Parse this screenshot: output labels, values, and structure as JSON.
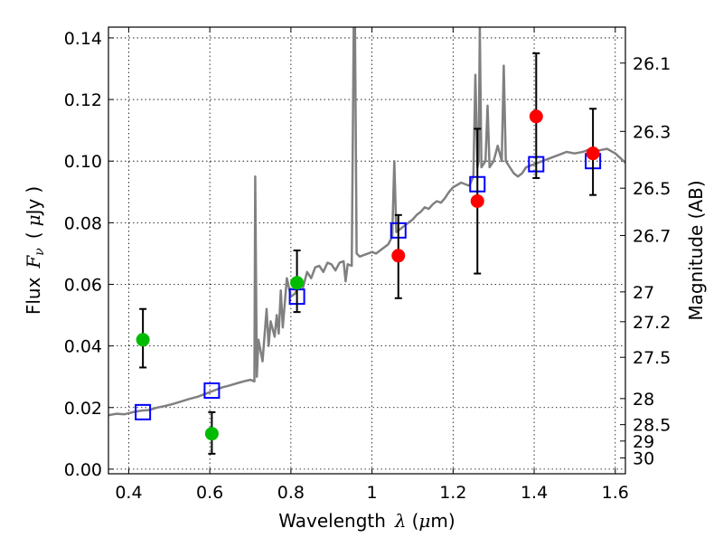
{
  "chart_data": {
    "type": "scatter",
    "xlabel_parts": [
      "Wavelength",
      "λ",
      "(",
      "μ",
      "m)"
    ],
    "ylabel_parts": [
      "Flux",
      "F",
      "ν",
      "(",
      "μ",
      "Jy",
      ")"
    ],
    "y2label": "Magnitude (AB)",
    "xlim": [
      0.35,
      1.625
    ],
    "ylim": [
      -0.0015,
      0.1435
    ],
    "grid": true,
    "x_ticks": [
      0.4,
      0.6,
      0.8,
      1.0,
      1.2,
      1.4,
      1.6
    ],
    "x_tick_labels": [
      "0.4",
      "0.6",
      "0.8",
      "1",
      "1.2",
      "1.4",
      "1.6"
    ],
    "y_ticks": [
      0.0,
      0.02,
      0.04,
      0.06,
      0.08,
      0.1,
      0.12,
      0.14
    ],
    "y_tick_labels": [
      "0.00",
      "0.02",
      "0.04",
      "0.06",
      "0.08",
      "0.10",
      "0.12",
      "0.14"
    ],
    "y2_ticks": [
      {
        "label": "26.1",
        "mag": 26.1
      },
      {
        "label": "26.3",
        "mag": 26.3
      },
      {
        "label": "26.5",
        "mag": 26.5
      },
      {
        "label": "26.7",
        "mag": 26.7
      },
      {
        "label": "27",
        "mag": 27.0
      },
      {
        "label": "27.2",
        "mag": 27.2
      },
      {
        "label": "27.5",
        "mag": 27.5
      },
      {
        "label": "28",
        "mag": 28.0
      },
      {
        "label": "28.5",
        "mag": 28.5
      },
      {
        "label": "29",
        "mag": 29.0
      },
      {
        "label": "30",
        "mag": 30.0
      }
    ],
    "series": [
      {
        "kind": "line",
        "color": "#808080",
        "points": [
          [
            0.35,
            0.0175
          ],
          [
            0.37,
            0.018
          ],
          [
            0.39,
            0.0178
          ],
          [
            0.41,
            0.0185
          ],
          [
            0.43,
            0.019
          ],
          [
            0.45,
            0.0192
          ],
          [
            0.47,
            0.02
          ],
          [
            0.49,
            0.0205
          ],
          [
            0.51,
            0.0212
          ],
          [
            0.53,
            0.022
          ],
          [
            0.55,
            0.0228
          ],
          [
            0.57,
            0.0235
          ],
          [
            0.59,
            0.0245
          ],
          [
            0.61,
            0.0255
          ],
          [
            0.63,
            0.0265
          ],
          [
            0.65,
            0.0272
          ],
          [
            0.67,
            0.028
          ],
          [
            0.69,
            0.0287
          ],
          [
            0.7,
            0.029
          ],
          [
            0.71,
            0.0285
          ],
          [
            0.712,
            0.095
          ],
          [
            0.716,
            0.03
          ],
          [
            0.72,
            0.042
          ],
          [
            0.73,
            0.035
          ],
          [
            0.74,
            0.052
          ],
          [
            0.745,
            0.04
          ],
          [
            0.75,
            0.048
          ],
          [
            0.76,
            0.043
          ],
          [
            0.765,
            0.05
          ],
          [
            0.77,
            0.044
          ],
          [
            0.775,
            0.058
          ],
          [
            0.78,
            0.046
          ],
          [
            0.79,
            0.062
          ],
          [
            0.8,
            0.056
          ],
          [
            0.81,
            0.057
          ],
          [
            0.82,
            0.06
          ],
          [
            0.83,
            0.059
          ],
          [
            0.84,
            0.064
          ],
          [
            0.85,
            0.062
          ],
          [
            0.86,
            0.0655
          ],
          [
            0.87,
            0.066
          ],
          [
            0.88,
            0.064
          ],
          [
            0.89,
            0.067
          ],
          [
            0.9,
            0.0665
          ],
          [
            0.91,
            0.0645
          ],
          [
            0.92,
            0.067
          ],
          [
            0.93,
            0.0675
          ],
          [
            0.935,
            0.061
          ],
          [
            0.94,
            0.0665
          ],
          [
            0.95,
            0.066
          ],
          [
            0.955,
            0.1435
          ],
          [
            0.958,
            0.1435
          ],
          [
            0.962,
            0.07
          ],
          [
            0.97,
            0.069
          ],
          [
            0.98,
            0.0695
          ],
          [
            0.99,
            0.07
          ],
          [
            1.0,
            0.0705
          ],
          [
            1.01,
            0.07
          ],
          [
            1.02,
            0.071
          ],
          [
            1.03,
            0.072
          ],
          [
            1.04,
            0.073
          ],
          [
            1.05,
            0.0755
          ],
          [
            1.055,
            0.1
          ],
          [
            1.06,
            0.077
          ],
          [
            1.07,
            0.078
          ],
          [
            1.08,
            0.079
          ],
          [
            1.09,
            0.08
          ],
          [
            1.1,
            0.081
          ],
          [
            1.11,
            0.0825
          ],
          [
            1.12,
            0.0835
          ],
          [
            1.13,
            0.085
          ],
          [
            1.14,
            0.0845
          ],
          [
            1.15,
            0.086
          ],
          [
            1.16,
            0.087
          ],
          [
            1.17,
            0.0865
          ],
          [
            1.18,
            0.088
          ],
          [
            1.19,
            0.09
          ],
          [
            1.2,
            0.0915
          ],
          [
            1.22,
            0.093
          ],
          [
            1.24,
            0.092
          ],
          [
            1.25,
            0.095
          ],
          [
            1.255,
            0.128
          ],
          [
            1.26,
            0.098
          ],
          [
            1.263,
            0.1
          ],
          [
            1.266,
            0.1435
          ],
          [
            1.27,
            0.098
          ],
          [
            1.28,
            0.1
          ],
          [
            1.285,
            0.118
          ],
          [
            1.29,
            0.098
          ],
          [
            1.3,
            0.1
          ],
          [
            1.31,
            0.105
          ],
          [
            1.32,
            0.1
          ],
          [
            1.325,
            0.131
          ],
          [
            1.33,
            0.1
          ],
          [
            1.34,
            0.098
          ],
          [
            1.35,
            0.096
          ],
          [
            1.36,
            0.095
          ],
          [
            1.37,
            0.096
          ],
          [
            1.38,
            0.098
          ],
          [
            1.4,
            0.099
          ],
          [
            1.42,
            0.1
          ],
          [
            1.44,
            0.101
          ],
          [
            1.46,
            0.102
          ],
          [
            1.48,
            0.103
          ],
          [
            1.5,
            0.1025
          ],
          [
            1.52,
            0.103
          ],
          [
            1.54,
            0.104
          ],
          [
            1.56,
            0.1035
          ],
          [
            1.58,
            0.104
          ],
          [
            1.6,
            0.1025
          ],
          [
            1.625,
            0.0995
          ]
        ]
      },
      {
        "kind": "points",
        "marker": "open-square",
        "color": "#0000ff",
        "points": [
          {
            "x": 0.435,
            "y": 0.0185
          },
          {
            "x": 0.605,
            "y": 0.0255
          },
          {
            "x": 0.815,
            "y": 0.056
          },
          {
            "x": 1.065,
            "y": 0.0775
          },
          {
            "x": 1.26,
            "y": 0.0925
          },
          {
            "x": 1.405,
            "y": 0.099
          },
          {
            "x": 1.545,
            "y": 0.1
          }
        ]
      },
      {
        "kind": "points",
        "marker": "filled-circle",
        "color": "#00bb00",
        "points": [
          {
            "x": 0.435,
            "y": 0.042,
            "yerr_low": 0.033,
            "yerr_high": 0.052
          },
          {
            "x": 0.605,
            "y": 0.0115,
            "yerr_low": 0.005,
            "yerr_high": 0.0185
          },
          {
            "x": 0.815,
            "y": 0.0605,
            "yerr_low": 0.051,
            "yerr_high": 0.071
          }
        ]
      },
      {
        "kind": "points",
        "marker": "filled-circle",
        "color": "#ff0000",
        "points": [
          {
            "x": 1.065,
            "y": 0.0693,
            "yerr_low": 0.0555,
            "yerr_high": 0.0825
          },
          {
            "x": 1.26,
            "y": 0.087,
            "yerr_low": 0.0635,
            "yerr_high": 0.1105
          },
          {
            "x": 1.405,
            "y": 0.1145,
            "yerr_low": 0.0945,
            "yerr_high": 0.135
          },
          {
            "x": 1.545,
            "y": 0.1025,
            "yerr_low": 0.089,
            "yerr_high": 0.117
          }
        ]
      }
    ]
  }
}
